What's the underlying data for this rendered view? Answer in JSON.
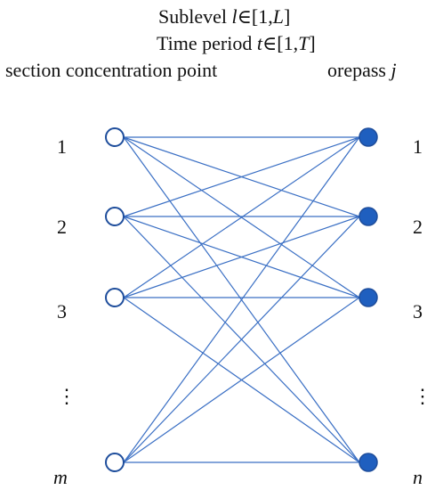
{
  "header": {
    "line1_prefix": "Sublevel ",
    "line1_var": "l",
    "line1_range_a": "∈[1,",
    "line1_range_var": "L",
    "line1_range_b": "]",
    "line2_prefix": "Time period ",
    "line2_var": "t",
    "line2_range_a": "∈[1,",
    "line2_range_var": "T",
    "line2_range_b": "]"
  },
  "left_column": {
    "heading": "section concentration point",
    "labels": [
      "1",
      "2",
      "3",
      "⋮",
      "m"
    ]
  },
  "right_column": {
    "heading_prefix": "orepass ",
    "heading_var": "j",
    "labels": [
      "1",
      "2",
      "3",
      "⋮",
      "n"
    ]
  },
  "colors": {
    "edge": "#3a6fc4",
    "node_stroke": "#1f4e9c",
    "left_node_fill": "#ffffff",
    "right_node_fill": "#1f5fbf"
  }
}
